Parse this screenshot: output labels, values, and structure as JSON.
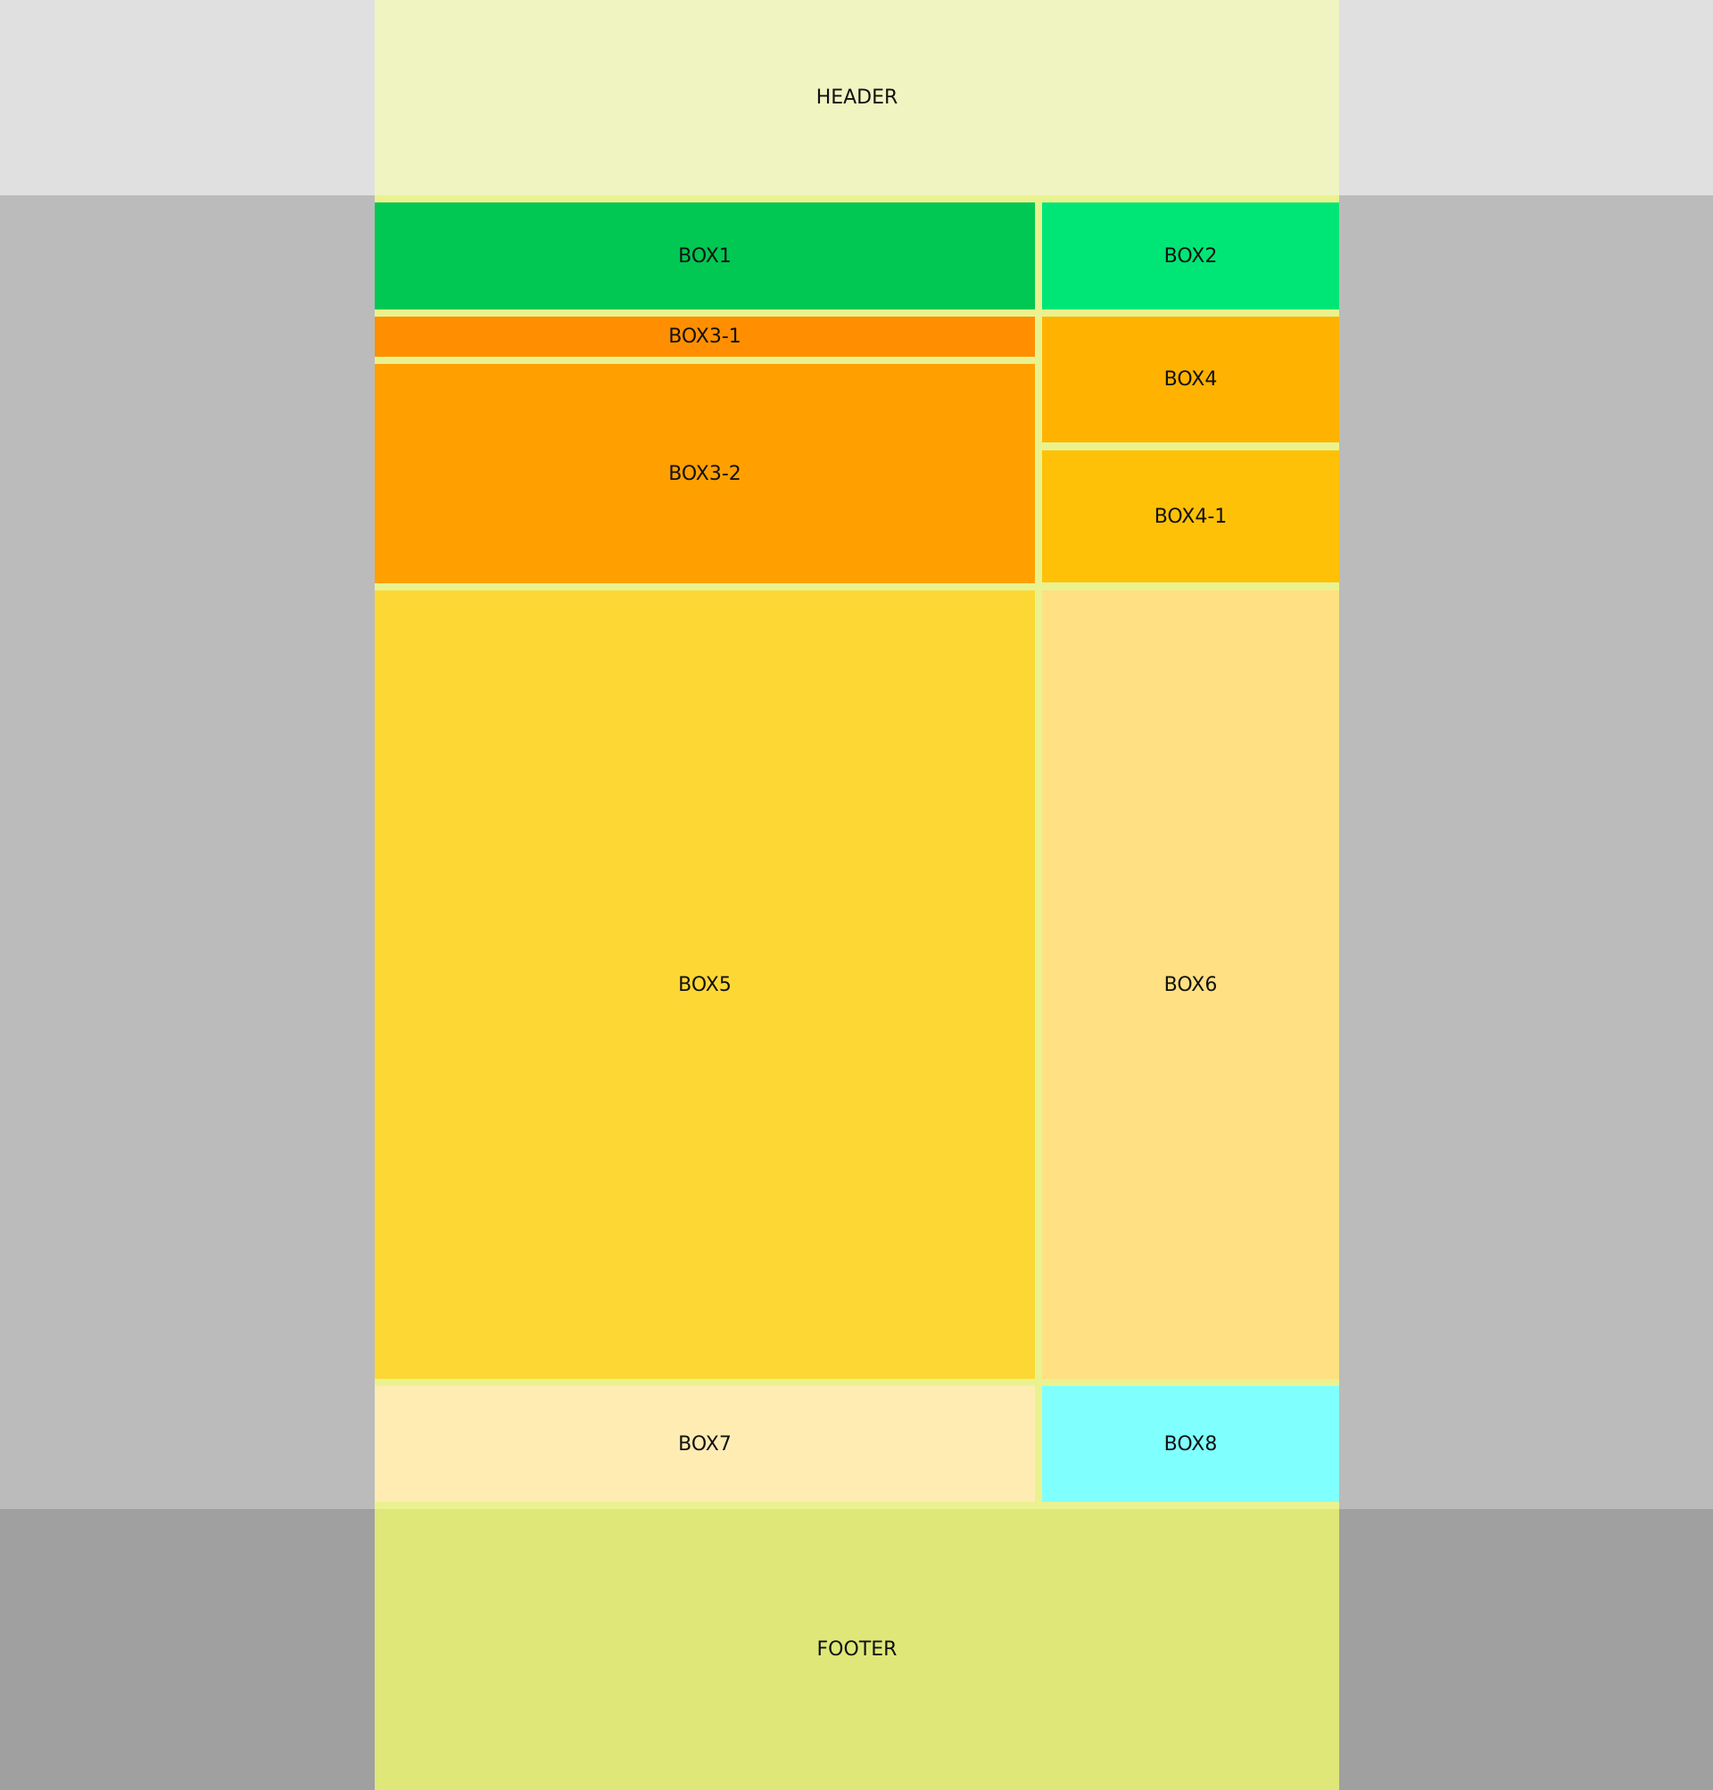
{
  "header": {
    "label": "HEADER"
  },
  "boxes": {
    "box1": {
      "label": "BOX1",
      "color": "#00c853"
    },
    "box2": {
      "label": "BOX2",
      "color": "#00e676"
    },
    "box3_1": {
      "label": "BOX3-1",
      "color": "#ff8f00"
    },
    "box3_2": {
      "label": "BOX3-2",
      "color": "#ffa000"
    },
    "box4": {
      "label": "BOX4",
      "color": "#ffb300"
    },
    "box4_1": {
      "label": "BOX4-1",
      "color": "#ffc107"
    },
    "box5": {
      "label": "BOX5",
      "color": "#fdd835"
    },
    "box6": {
      "label": "BOX6",
      "color": "#ffe082"
    },
    "box7": {
      "label": "BOX7",
      "color": "#ffecb3"
    },
    "box8": {
      "label": "BOX8",
      "color": "#80ffff"
    }
  },
  "footer": {
    "label": "FOOTER"
  }
}
